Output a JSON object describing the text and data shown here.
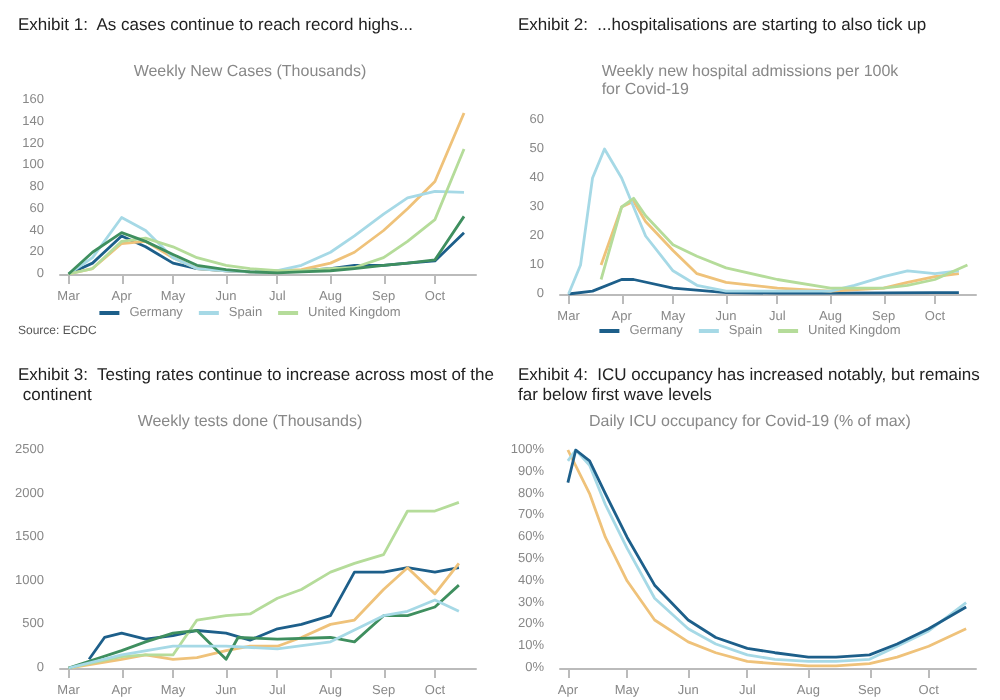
{
  "chart_data": [
    {
      "type": "line",
      "title": "Exhibit 1:  As cases continue to reach record highs...",
      "subtitle": "Weekly New Cases (Thousands)",
      "annotations": [
        "Source: ECDC"
      ],
      "legend": "bottom",
      "marker": "none",
      "grid": false,
      "xlim": [
        "--02-25",
        "--10-25"
      ],
      "xticks": [
        {
          "value": "--03-01",
          "label": "Mar"
        },
        {
          "value": "--04-01",
          "label": "Apr"
        },
        {
          "value": "--05-01",
          "label": "May"
        },
        {
          "value": "--06-01",
          "label": "Jun"
        },
        {
          "value": "--07-01",
          "label": "Jul"
        },
        {
          "value": "--08-01",
          "label": "Aug"
        },
        {
          "value": "--09-01",
          "label": "Sep"
        },
        {
          "value": "--10-01",
          "label": "Oct"
        }
      ],
      "ylim": [
        0,
        160
      ],
      "yticks": [
        0,
        20,
        40,
        60,
        80,
        100,
        120,
        140,
        160
      ],
      "x": [
        "--03-01",
        "--03-15",
        "--04-01",
        "--04-15",
        "--05-01",
        "--05-15",
        "--06-01",
        "--06-15",
        "--07-01",
        "--07-15",
        "--08-01",
        "--08-15",
        "--09-01",
        "--09-15",
        "--10-01",
        "--10-18"
      ],
      "series": [
        {
          "name": "Germany",
          "color": "#1d5f8a",
          "values": [
            0,
            10,
            35,
            25,
            10,
            5,
            3,
            2,
            2,
            3,
            5,
            8,
            8,
            10,
            12,
            38
          ]
        },
        {
          "color": "#efc27a",
          "values": [
            0,
            5,
            28,
            30,
            15,
            5,
            3,
            2,
            3,
            4,
            10,
            20,
            40,
            60,
            85,
            148
          ]
        },
        {
          "name": "Spain",
          "color": "#a6d9e6",
          "values": [
            0,
            15,
            52,
            40,
            15,
            5,
            3,
            2,
            3,
            8,
            20,
            35,
            55,
            70,
            76,
            75
          ]
        },
        {
          "name": "United Kingdom",
          "color": "#b5dc9a",
          "values": [
            0,
            5,
            30,
            33,
            25,
            15,
            8,
            5,
            3,
            3,
            5,
            6,
            15,
            30,
            50,
            115
          ]
        },
        {
          "color": "#3f8f5f",
          "values": [
            0,
            20,
            38,
            30,
            18,
            8,
            4,
            2,
            1,
            2,
            3,
            5,
            8,
            10,
            13,
            53
          ]
        }
      ]
    },
    {
      "type": "line",
      "title": "Exhibit 2:  ...hospitalisations are starting to also tick up",
      "subtitle": "Weekly new hospital admissions per 100k\nfor Covid-19",
      "legend": "bottom",
      "marker": "none",
      "grid": false,
      "xlim": [
        "--02-25",
        "--10-25"
      ],
      "xticks": [
        {
          "value": "--03-01",
          "label": "Mar"
        },
        {
          "value": "--04-01",
          "label": "Apr"
        },
        {
          "value": "--05-01",
          "label": "May"
        },
        {
          "value": "--06-01",
          "label": "Jun"
        },
        {
          "value": "--07-01",
          "label": "Jul"
        },
        {
          "value": "--08-01",
          "label": "Aug"
        },
        {
          "value": "--09-01",
          "label": "Sep"
        },
        {
          "value": "--10-01",
          "label": "Oct"
        }
      ],
      "ylim": [
        0,
        60
      ],
      "yticks": [
        0,
        10,
        20,
        30,
        40,
        50,
        60
      ],
      "series": [
        {
          "name": "Germany",
          "color": "#1d5f8a",
          "x": [
            "--03-01",
            "--03-15",
            "--04-01",
            "--04-08",
            "--05-01",
            "--06-01",
            "--07-01",
            "--08-01",
            "--09-01",
            "--10-01",
            "--10-15"
          ],
          "values": [
            0,
            1,
            5,
            5,
            2,
            0.5,
            0.3,
            0.3,
            0.4,
            0.5,
            0.5
          ]
        },
        {
          "color": "#efc27a",
          "x": [
            "--03-20",
            "--04-01",
            "--04-08",
            "--04-15",
            "--05-01",
            "--05-15",
            "--06-01",
            "--07-01",
            "--08-01",
            "--09-01",
            "--09-15",
            "--10-01",
            "--10-15"
          ],
          "values": [
            10,
            30,
            32,
            25,
            15,
            7,
            4,
            2,
            1,
            2,
            4,
            6,
            7
          ]
        },
        {
          "name": "Spain",
          "color": "#a6d9e6",
          "x": [
            "--03-01",
            "--03-08",
            "--03-15",
            "--03-22",
            "--04-01",
            "--04-15",
            "--05-01",
            "--05-15",
            "--06-01",
            "--07-01",
            "--08-01",
            "--08-15",
            "--09-01",
            "--09-15",
            "--10-01",
            "--10-15"
          ],
          "values": [
            0,
            10,
            40,
            50,
            40,
            20,
            8,
            3,
            1,
            1,
            1,
            3,
            6,
            8,
            7,
            8
          ]
        },
        {
          "name": "United Kingdom",
          "color": "#b5dc9a",
          "x": [
            "--03-20",
            "--04-01",
            "--04-08",
            "--04-15",
            "--05-01",
            "--05-15",
            "--06-01",
            "--07-01",
            "--08-01",
            "--09-01",
            "--09-15",
            "--10-01",
            "--10-20"
          ],
          "values": [
            5,
            30,
            33,
            27,
            17,
            13,
            9,
            5,
            2,
            2,
            3,
            5,
            10
          ]
        }
      ]
    },
    {
      "type": "line",
      "title": "Exhibit 3:  Testing rates continue to increase across most of the continent",
      "subtitle": "Weekly tests done (Thousands)",
      "marker": "none",
      "grid": false,
      "xlim": [
        "--02-25",
        "--10-25"
      ],
      "xticks": [
        {
          "value": "--03-01",
          "label": "Mar"
        },
        {
          "value": "--04-01",
          "label": "Apr"
        },
        {
          "value": "--05-01",
          "label": "May"
        },
        {
          "value": "--06-01",
          "label": "Jun"
        },
        {
          "value": "--07-01",
          "label": "Jul"
        },
        {
          "value": "--08-01",
          "label": "Aug"
        },
        {
          "value": "--09-01",
          "label": "Sep"
        },
        {
          "value": "--10-01",
          "label": "Oct"
        }
      ],
      "ylim": [
        0,
        2500
      ],
      "yticks": [
        0,
        500,
        1000,
        1500,
        2000,
        2500
      ],
      "series": [
        {
          "color": "#1d5f8a",
          "x": [
            "--03-13",
            "--03-22",
            "--04-01",
            "--04-15",
            "--05-01",
            "--05-15",
            "--06-01",
            "--06-15",
            "--07-01",
            "--07-15",
            "--08-01",
            "--08-15",
            "--09-01",
            "--09-15",
            "--10-01",
            "--10-15"
          ],
          "values": [
            100,
            350,
            400,
            330,
            370,
            430,
            400,
            320,
            450,
            500,
            600,
            1100,
            1100,
            1150,
            1100,
            1150
          ]
        },
        {
          "color": "#efc27a",
          "x": [
            "--03-01",
            "--04-01",
            "--04-15",
            "--05-01",
            "--05-15",
            "--06-01",
            "--06-15",
            "--07-01",
            "--07-15",
            "--08-01",
            "--08-15",
            "--09-01",
            "--09-15",
            "--10-01",
            "--10-15"
          ],
          "values": [
            0,
            100,
            150,
            100,
            120,
            200,
            250,
            250,
            350,
            500,
            550,
            900,
            1150,
            850,
            1200
          ]
        },
        {
          "color": "#b5dc9a",
          "x": [
            "--03-01",
            "--04-01",
            "--04-15",
            "--05-01",
            "--05-15",
            "--06-01",
            "--06-15",
            "--07-01",
            "--07-15",
            "--08-01",
            "--08-15",
            "--09-01",
            "--09-15",
            "--10-01",
            "--10-15"
          ],
          "values": [
            0,
            130,
            150,
            150,
            550,
            600,
            620,
            800,
            900,
            1100,
            1200,
            1300,
            1800,
            1800,
            1900
          ]
        },
        {
          "color": "#3f8f5f",
          "x": [
            "--03-01",
            "--04-01",
            "--04-15",
            "--05-01",
            "--05-15",
            "--06-01",
            "--06-08",
            "--07-01",
            "--08-01",
            "--08-15",
            "--09-01",
            "--09-15",
            "--10-01",
            "--10-15"
          ],
          "values": [
            0,
            200,
            300,
            400,
            430,
            100,
            350,
            330,
            350,
            300,
            600,
            600,
            700,
            950
          ]
        },
        {
          "color": "#a6d9e6",
          "x": [
            "--03-01",
            "--04-01",
            "--05-01",
            "--06-01",
            "--07-01",
            "--08-01",
            "--09-01",
            "--09-15",
            "--10-01",
            "--10-15"
          ],
          "values": [
            0,
            150,
            250,
            250,
            220,
            300,
            600,
            650,
            780,
            650
          ]
        }
      ]
    },
    {
      "type": "line",
      "title": "Exhibit 4:  ICU occupancy has increased notably, but remains far below first wave levels",
      "subtitle": "Daily ICU occupancy for Covid-19 (% of max)",
      "marker": "none",
      "grid": false,
      "xlim": [
        "--03-28",
        "--10-25"
      ],
      "xticks": [
        {
          "value": "--04-01",
          "label": "Apr"
        },
        {
          "value": "--05-01",
          "label": "May"
        },
        {
          "value": "--06-01",
          "label": "Jun"
        },
        {
          "value": "--07-01",
          "label": "Jul"
        },
        {
          "value": "--08-01",
          "label": "Aug"
        },
        {
          "value": "--09-01",
          "label": "Sep"
        },
        {
          "value": "--10-01",
          "label": "Oct"
        }
      ],
      "ylim": [
        0,
        100
      ],
      "yticks": [
        {
          "value": 0,
          "label": "0%"
        },
        {
          "value": 10,
          "label": "10%"
        },
        {
          "value": 20,
          "label": "20%"
        },
        {
          "value": 30,
          "label": "30%"
        },
        {
          "value": 40,
          "label": "40%"
        },
        {
          "value": 50,
          "label": "50%"
        },
        {
          "value": 60,
          "label": "60%"
        },
        {
          "value": 70,
          "label": "70%"
        },
        {
          "value": 80,
          "label": "80%"
        },
        {
          "value": 90,
          "label": "90%"
        },
        {
          "value": 100,
          "label": "100%"
        }
      ],
      "series": [
        {
          "color": "#efc27a",
          "x": [
            "--04-01",
            "--04-12",
            "--04-20",
            "--05-01",
            "--05-15",
            "--06-01",
            "--06-15",
            "--07-01",
            "--07-15",
            "--08-01",
            "--08-15",
            "--09-01",
            "--09-15",
            "--10-01",
            "--10-20"
          ],
          "values": [
            100,
            80,
            60,
            40,
            22,
            12,
            7,
            3,
            2,
            1,
            1,
            2,
            5,
            10,
            18
          ]
        },
        {
          "color": "#a6d9e6",
          "x": [
            "--04-01",
            "--04-05",
            "--04-12",
            "--04-20",
            "--05-01",
            "--05-15",
            "--06-01",
            "--06-15",
            "--07-01",
            "--07-15",
            "--08-01",
            "--08-15",
            "--09-01",
            "--09-15",
            "--10-01",
            "--10-20"
          ],
          "values": [
            95,
            100,
            93,
            75,
            55,
            32,
            18,
            11,
            6,
            4,
            3,
            3,
            4,
            10,
            17,
            30
          ]
        },
        {
          "color": "#1d5f8a",
          "x": [
            "--04-01",
            "--04-05",
            "--04-12",
            "--04-20",
            "--05-01",
            "--05-15",
            "--06-01",
            "--06-15",
            "--07-01",
            "--07-15",
            "--08-01",
            "--08-15",
            "--09-01",
            "--09-15",
            "--10-01",
            "--10-20"
          ],
          "values": [
            85,
            100,
            95,
            80,
            60,
            38,
            22,
            14,
            9,
            7,
            5,
            5,
            6,
            11,
            18,
            28
          ]
        }
      ]
    }
  ]
}
